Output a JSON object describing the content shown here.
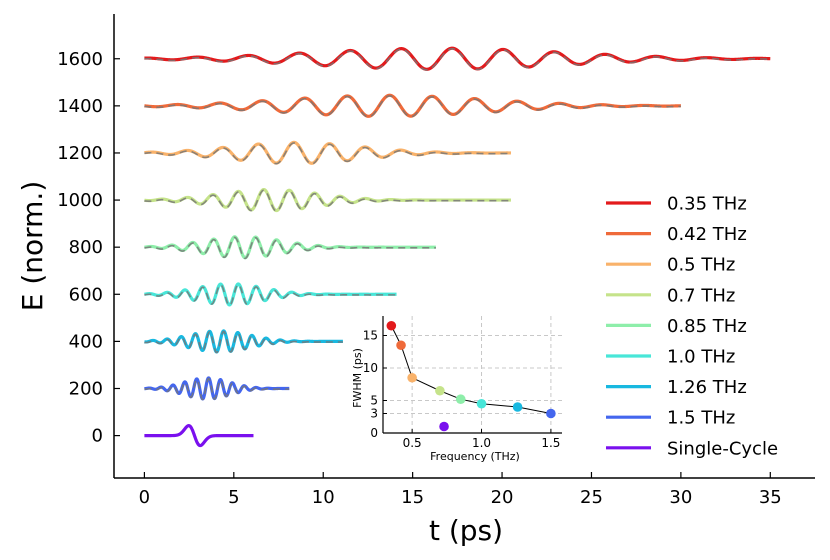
{
  "chart_data": {
    "type": "line",
    "title": "",
    "xlabel": "t (ps)",
    "ylabel": "E (norm.)",
    "xlim": [
      -1.7,
      37.5
    ],
    "ylim": [
      -180,
      1790
    ],
    "xticks": [
      0,
      5,
      10,
      15,
      20,
      25,
      30,
      35
    ],
    "yticks": [
      0,
      200,
      400,
      600,
      800,
      1000,
      1200,
      1400,
      1600
    ],
    "tick_labels_x": [
      "0",
      "5",
      "10",
      "15",
      "20",
      "25",
      "30",
      "35"
    ],
    "tick_labels_y": [
      "0",
      "200",
      "400",
      "600",
      "800",
      "1000",
      "1200",
      "1400",
      "1600"
    ],
    "legend_position": "center-right",
    "series_style_note": "solid line = measured, dashed gray line = fit",
    "series": [
      {
        "name": "0.35 THz",
        "freq": 0.35,
        "offset": 1600,
        "t_start": 0,
        "t_end": 35,
        "t_center": 16.5,
        "fwhm": 16.5,
        "amplitude": 45,
        "color": "#e31a1c"
      },
      {
        "name": "0.42 THz",
        "freq": 0.42,
        "offset": 1400,
        "t_start": 0,
        "t_end": 30,
        "t_center": 13.5,
        "fwhm": 13.5,
        "amplitude": 45,
        "color": "#ef6a3a"
      },
      {
        "name": "0.5 THz",
        "freq": 0.5,
        "offset": 1200,
        "t_start": 0,
        "t_end": 20.5,
        "t_center": 8.5,
        "fwhm": 8.5,
        "amplitude": 45,
        "color": "#f9b26a"
      },
      {
        "name": "0.7 THz",
        "freq": 0.7,
        "offset": 1000,
        "t_start": 0,
        "t_end": 20.5,
        "t_center": 7.0,
        "fwhm": 6.5,
        "amplitude": 45,
        "color": "#c5e38a"
      },
      {
        "name": "0.85 THz",
        "freq": 0.85,
        "offset": 800,
        "t_start": 0,
        "t_end": 16.3,
        "t_center": 5.5,
        "fwhm": 5.2,
        "amplitude": 45,
        "color": "#8eeeaa"
      },
      {
        "name": "1.0 THz",
        "freq": 1.0,
        "offset": 600,
        "t_start": 0,
        "t_end": 14.1,
        "t_center": 4.8,
        "fwhm": 4.5,
        "amplitude": 45,
        "color": "#48e6d8"
      },
      {
        "name": "1.26 THz",
        "freq": 1.26,
        "offset": 400,
        "t_start": 0,
        "t_end": 11.1,
        "t_center": 4.2,
        "fwhm": 4.0,
        "amplitude": 45,
        "color": "#18b8e0"
      },
      {
        "name": "1.5 THz",
        "freq": 1.5,
        "offset": 200,
        "t_start": 0,
        "t_end": 8.1,
        "t_center": 3.5,
        "fwhm": 3.0,
        "amplitude": 45,
        "color": "#4466ee"
      },
      {
        "name": "Single-Cycle",
        "freq": 0.75,
        "offset": 0,
        "t_start": 0,
        "t_end": 6.1,
        "t_center": 2.8,
        "fwhm": 1.0,
        "amplitude": 45,
        "color": "#7a10ee"
      }
    ],
    "inset": {
      "type": "scatter",
      "xlabel": "Frequency (THz)",
      "ylabel": "FWHM (ps)",
      "xlim": [
        0.29,
        1.58
      ],
      "ylim": [
        0,
        18
      ],
      "xticks": [
        0.5,
        1.0,
        1.5
      ],
      "yticks": [
        0,
        3,
        5,
        10,
        15
      ],
      "tick_labels_x": [
        "0.5",
        "1.0",
        "1.5"
      ],
      "tick_labels_y": [
        "0",
        "3",
        "5",
        "10",
        "15"
      ],
      "grid": true,
      "points": [
        {
          "x": 0.35,
          "y": 16.5,
          "color": "#e31a1c"
        },
        {
          "x": 0.42,
          "y": 13.5,
          "color": "#ef6a3a"
        },
        {
          "x": 0.5,
          "y": 8.5,
          "color": "#f9b26a"
        },
        {
          "x": 0.7,
          "y": 6.5,
          "color": "#c5e38a"
        },
        {
          "x": 0.85,
          "y": 5.2,
          "color": "#8eeeaa"
        },
        {
          "x": 1.0,
          "y": 4.5,
          "color": "#48e6d8"
        },
        {
          "x": 1.26,
          "y": 4.0,
          "color": "#18b8e0"
        },
        {
          "x": 1.5,
          "y": 3.0,
          "color": "#4466ee"
        }
      ],
      "outlier": {
        "x": 0.73,
        "y": 1.0,
        "color": "#7a10ee"
      }
    }
  }
}
